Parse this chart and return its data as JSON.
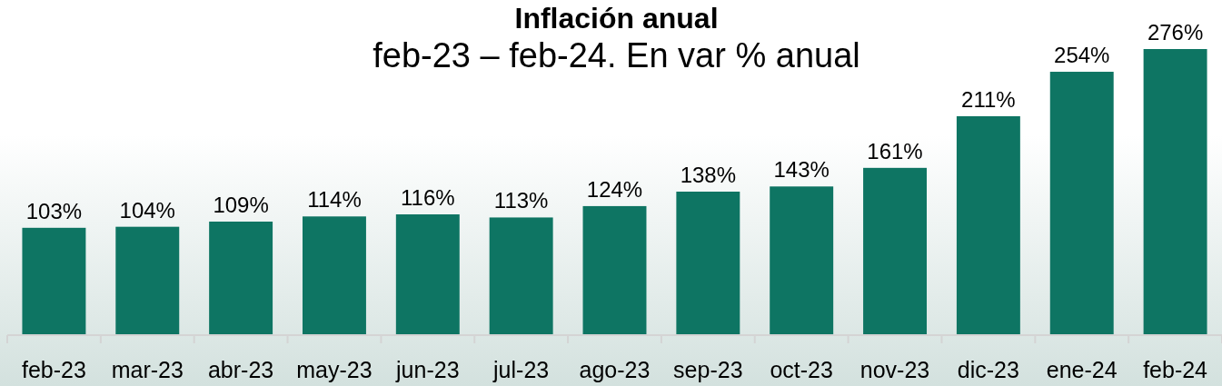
{
  "chart_data": {
    "type": "bar",
    "title": "Inflación anual",
    "subtitle": "feb-23 – feb-24. En var % anual",
    "categories": [
      "feb-23",
      "mar-23",
      "abr-23",
      "may-23",
      "jun-23",
      "jul-23",
      "ago-23",
      "sep-23",
      "oct-23",
      "nov-23",
      "dic-23",
      "ene-24",
      "feb-24"
    ],
    "values": [
      103,
      104,
      109,
      114,
      116,
      113,
      124,
      138,
      143,
      161,
      211,
      254,
      276
    ],
    "value_labels": [
      "103%",
      "104%",
      "109%",
      "114%",
      "116%",
      "113%",
      "124%",
      "138%",
      "143%",
      "161%",
      "211%",
      "254%",
      "276%"
    ],
    "color": "#0e7563"
  }
}
